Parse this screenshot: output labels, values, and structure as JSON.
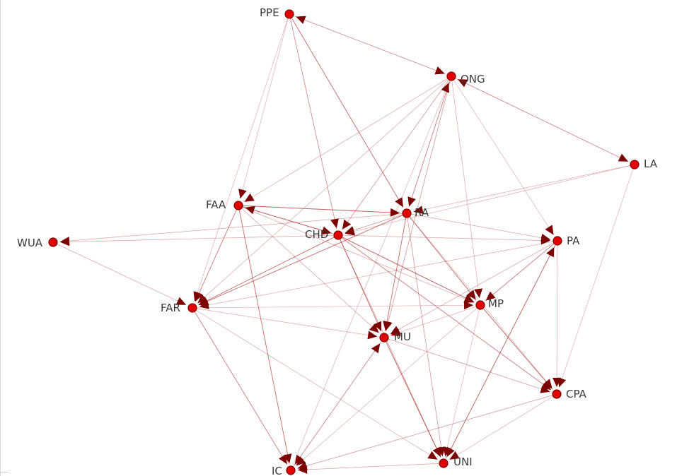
{
  "graph": {
    "node_color": "#e30000",
    "node_stroke": "#7a0000",
    "arrow_color": "#7d0000",
    "edge_color": "#b04040",
    "nodes": [
      {
        "id": "PPE",
        "label": "PPE"
      },
      {
        "id": "ONG",
        "label": "ONG"
      },
      {
        "id": "LA",
        "label": "LA"
      },
      {
        "id": "FAA",
        "label": "FAA"
      },
      {
        "id": "RA",
        "label": "RA"
      },
      {
        "id": "CHD",
        "label": "CHD"
      },
      {
        "id": "PA",
        "label": "PA"
      },
      {
        "id": "WUA",
        "label": "WUA"
      },
      {
        "id": "FAR",
        "label": "FAR"
      },
      {
        "id": "MP",
        "label": "MP"
      },
      {
        "id": "MU",
        "label": "MU"
      },
      {
        "id": "CPA",
        "label": "CPA"
      },
      {
        "id": "IC",
        "label": "IC"
      },
      {
        "id": "UNI",
        "label": "UNI"
      }
    ],
    "edges": [
      {
        "from": "PPE",
        "to": "ONG",
        "weight": 0.35
      },
      {
        "from": "PPE",
        "to": "CHD",
        "weight": 0.6
      },
      {
        "from": "PPE",
        "to": "RA",
        "weight": 0.8
      },
      {
        "from": "PPE",
        "to": "FAR",
        "weight": 0.3
      },
      {
        "from": "PPE",
        "to": "FAA",
        "weight": 0.3
      },
      {
        "from": "ONG",
        "to": "PPE",
        "weight": 0.3
      },
      {
        "from": "ONG",
        "to": "LA",
        "weight": 0.4
      },
      {
        "from": "ONG",
        "to": "FAA",
        "weight": 0.35
      },
      {
        "from": "ONG",
        "to": "RA",
        "weight": 0.7
      },
      {
        "from": "ONG",
        "to": "CHD",
        "weight": 0.5
      },
      {
        "from": "ONG",
        "to": "MP",
        "weight": 0.35
      },
      {
        "from": "ONG",
        "to": "PA",
        "weight": 0.3
      },
      {
        "from": "ONG",
        "to": "MU",
        "weight": 0.5
      },
      {
        "from": "ONG",
        "to": "FAR",
        "weight": 0.35
      },
      {
        "from": "LA",
        "to": "RA",
        "weight": 0.35
      },
      {
        "from": "LA",
        "to": "CHD",
        "weight": 0.3
      },
      {
        "from": "LA",
        "to": "CPA",
        "weight": 0.3
      },
      {
        "from": "LA",
        "to": "ONG",
        "weight": 0.3
      },
      {
        "from": "FAA",
        "to": "RA",
        "weight": 0.9
      },
      {
        "from": "FAA",
        "to": "CHD",
        "weight": 0.8
      },
      {
        "from": "FAA",
        "to": "FAR",
        "weight": 0.7
      },
      {
        "from": "FAA",
        "to": "IC",
        "weight": 0.8
      },
      {
        "from": "FAA",
        "to": "MP",
        "weight": 0.4
      },
      {
        "from": "FAA",
        "to": "MU",
        "weight": 0.4
      },
      {
        "from": "RA",
        "to": "FAR",
        "weight": 0.8
      },
      {
        "from": "RA",
        "to": "CHD",
        "weight": 0.5
      },
      {
        "from": "RA",
        "to": "MU",
        "weight": 0.8
      },
      {
        "from": "RA",
        "to": "MP",
        "weight": 0.8
      },
      {
        "from": "RA",
        "to": "PA",
        "weight": 0.4
      },
      {
        "from": "RA",
        "to": "UNI",
        "weight": 0.5
      },
      {
        "from": "RA",
        "to": "CPA",
        "weight": 0.3
      },
      {
        "from": "RA",
        "to": "WUA",
        "weight": 0.4
      },
      {
        "from": "CHD",
        "to": "FAR",
        "weight": 0.8
      },
      {
        "from": "CHD",
        "to": "WUA",
        "weight": 0.4
      },
      {
        "from": "CHD",
        "to": "MP",
        "weight": 0.9
      },
      {
        "from": "CHD",
        "to": "MU",
        "weight": 0.8
      },
      {
        "from": "CHD",
        "to": "CPA",
        "weight": 0.7
      },
      {
        "from": "CHD",
        "to": "PA",
        "weight": 0.4
      },
      {
        "from": "CHD",
        "to": "UNI",
        "weight": 0.4
      },
      {
        "from": "CHD",
        "to": "FAA",
        "weight": 0.4
      },
      {
        "from": "PA",
        "to": "FAR",
        "weight": 0.35
      },
      {
        "from": "PA",
        "to": "MP",
        "weight": 0.7
      },
      {
        "from": "PA",
        "to": "MU",
        "weight": 0.4
      },
      {
        "from": "PA",
        "to": "CPA",
        "weight": 0.35
      },
      {
        "from": "PA",
        "to": "UNI",
        "weight": 0.7
      },
      {
        "from": "WUA",
        "to": "FAR",
        "weight": 0.4
      },
      {
        "from": "FAR",
        "to": "MU",
        "weight": 0.35
      },
      {
        "from": "FAR",
        "to": "MP",
        "weight": 0.3
      },
      {
        "from": "FAR",
        "to": "IC",
        "weight": 0.7
      },
      {
        "from": "FAR",
        "to": "UNI",
        "weight": 0.35
      },
      {
        "from": "MP",
        "to": "MU",
        "weight": 0.3
      },
      {
        "from": "MP",
        "to": "CPA",
        "weight": 0.8
      },
      {
        "from": "MP",
        "to": "UNI",
        "weight": 0.3
      },
      {
        "from": "MP",
        "to": "IC",
        "weight": 0.3
      },
      {
        "from": "MU",
        "to": "UNI",
        "weight": 0.9
      },
      {
        "from": "MU",
        "to": "CPA",
        "weight": 0.5
      },
      {
        "from": "MU",
        "to": "IC",
        "weight": 0.4
      },
      {
        "from": "CPA",
        "to": "IC",
        "weight": 0.5
      },
      {
        "from": "CPA",
        "to": "UNI",
        "weight": 0.3
      },
      {
        "from": "UNI",
        "to": "IC",
        "weight": 0.4
      },
      {
        "from": "IC",
        "to": "MU",
        "weight": 0.3
      },
      {
        "from": "IC",
        "to": "ONG",
        "weight": 0.3
      },
      {
        "from": "UNI",
        "to": "PA",
        "weight": 0.4
      }
    ]
  }
}
